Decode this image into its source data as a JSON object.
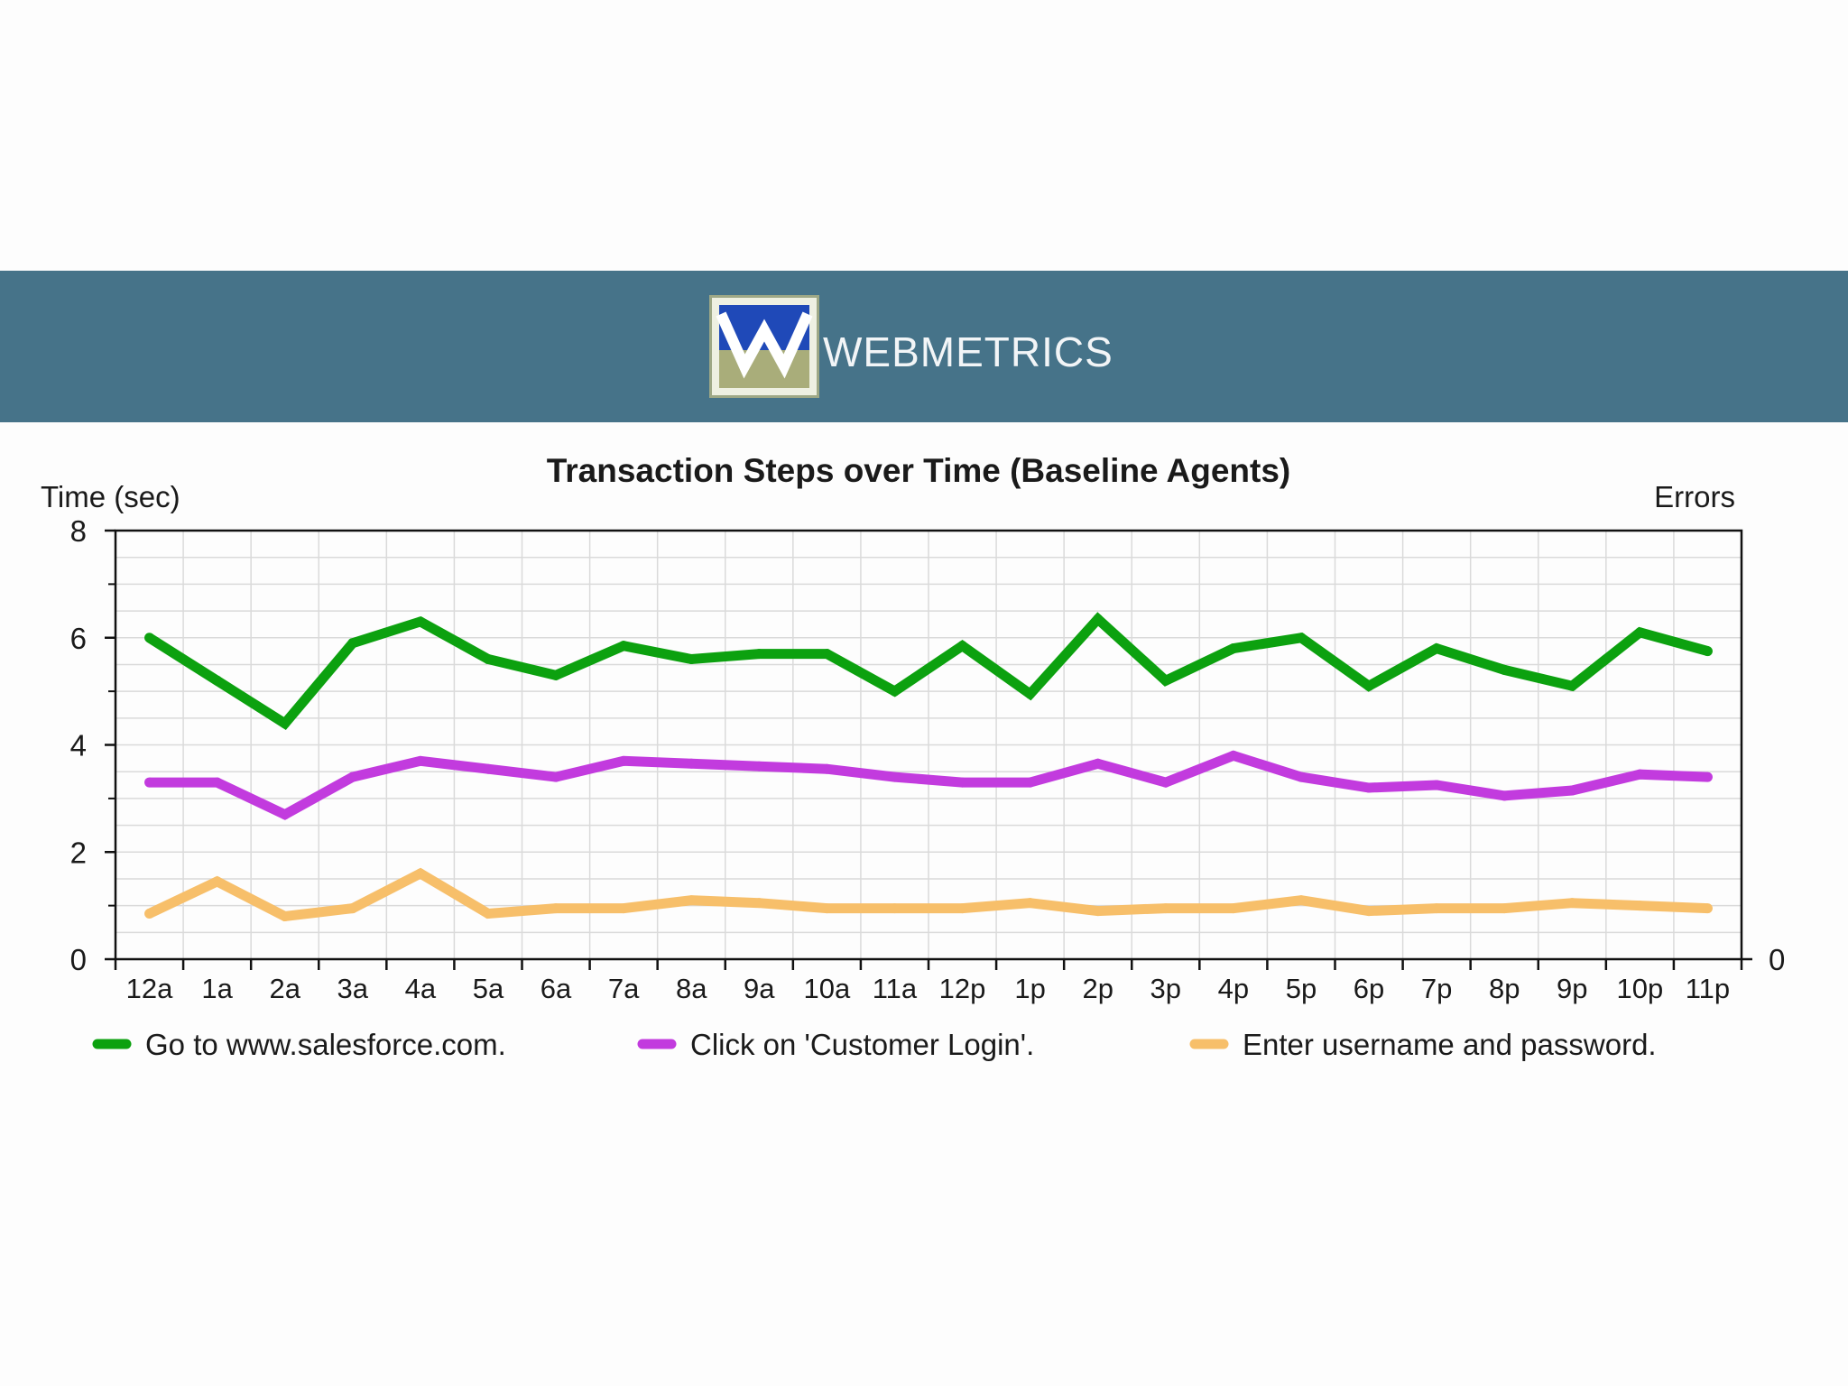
{
  "header": {
    "logo_icon": "webmetrics-w-logo",
    "logo_text": "WEBMETRICS",
    "background_color": "#467389"
  },
  "chart_data": {
    "type": "line",
    "title": "Transaction Steps over Time (Baseline Agents)",
    "ylabel": "Time (sec)",
    "y2label": "Errors",
    "ylim": [
      0,
      8
    ],
    "yticks": [
      "0",
      "2",
      "4",
      "6",
      "8"
    ],
    "y2ticks": [
      "0"
    ],
    "categories": [
      "12a",
      "1a",
      "2a",
      "3a",
      "4a",
      "5a",
      "6a",
      "7a",
      "8a",
      "9a",
      "10a",
      "11a",
      "12p",
      "1p",
      "2p",
      "3p",
      "4p",
      "5p",
      "6p",
      "7p",
      "8p",
      "9p",
      "10p",
      "11p"
    ],
    "grid": true,
    "legend_position": "bottom",
    "series": [
      {
        "name": "Go to www.salesforce.com.",
        "color": "#0ca10f",
        "values": [
          6.0,
          5.2,
          4.4,
          5.9,
          6.3,
          5.6,
          5.3,
          5.85,
          5.6,
          5.7,
          5.7,
          5.0,
          5.85,
          4.95,
          6.35,
          5.2,
          5.8,
          6.0,
          5.1,
          5.8,
          5.4,
          5.1,
          6.1,
          5.75
        ]
      },
      {
        "name": "Click on 'Customer Login'.",
        "color": "#c23bde",
        "values": [
          3.3,
          3.3,
          2.7,
          3.4,
          3.7,
          3.55,
          3.4,
          3.7,
          3.65,
          3.6,
          3.55,
          3.4,
          3.3,
          3.3,
          3.65,
          3.3,
          3.8,
          3.4,
          3.2,
          3.25,
          3.05,
          3.15,
          3.45,
          3.4
        ]
      },
      {
        "name": "Enter username and password.",
        "color": "#f7bf6a",
        "values": [
          0.85,
          1.45,
          0.8,
          0.95,
          1.6,
          0.85,
          0.95,
          0.95,
          1.1,
          1.05,
          0.95,
          0.95,
          0.95,
          1.05,
          0.9,
          0.95,
          0.95,
          1.1,
          0.9,
          0.95,
          0.95,
          1.05,
          1.0,
          0.95
        ]
      }
    ]
  }
}
